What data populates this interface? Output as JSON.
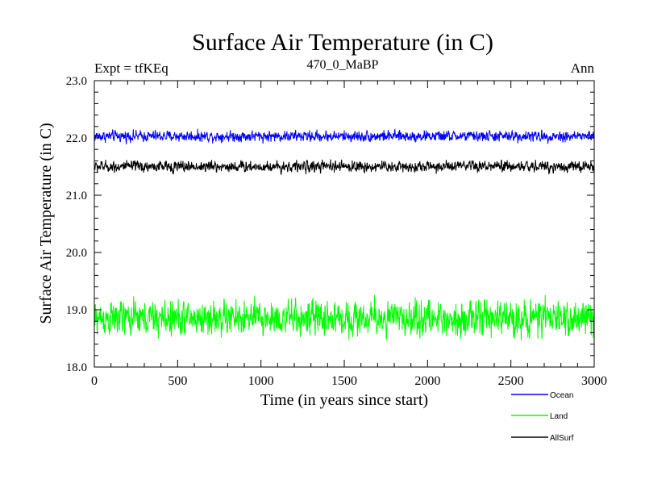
{
  "chart_data": {
    "type": "line",
    "title": "Surface Air Temperature (in C)",
    "subtitle_left": "Expt = tfKEq",
    "subtitle_center": "470_0_MaBP",
    "subtitle_right": "Ann",
    "xlabel": "Time (in years since start)",
    "ylabel": "Surface Air Temperature (in C)",
    "xlim": [
      0,
      3000
    ],
    "ylim": [
      18.0,
      23.0
    ],
    "x_ticks": [
      0,
      500,
      1000,
      1500,
      2000,
      2500,
      3000
    ],
    "x_tick_labels": [
      "0",
      "500",
      "1000",
      "1500",
      "2000",
      "2500",
      "3000"
    ],
    "y_ticks": [
      18.0,
      19.0,
      20.0,
      21.0,
      22.0,
      23.0
    ],
    "y_tick_labels": [
      "18.0",
      "19.0",
      "20.0",
      "21.0",
      "22.0",
      "23.0"
    ],
    "grid": false,
    "legend_position": "bottom-right, below plot",
    "series": [
      {
        "name": "Ocean",
        "color": "#0000ff",
        "mean": 22.03,
        "noise_range": [
          21.85,
          22.22
        ],
        "x_range": [
          0,
          3000
        ]
      },
      {
        "name": "Land",
        "color": "#00ff00",
        "mean": 18.85,
        "noise_range": [
          18.28,
          19.45
        ],
        "x_range": [
          0,
          3000
        ]
      },
      {
        "name": "AllSurf",
        "color": "#000000",
        "mean": 21.5,
        "noise_range": [
          21.32,
          21.7
        ],
        "x_range": [
          0,
          3000
        ]
      }
    ]
  }
}
